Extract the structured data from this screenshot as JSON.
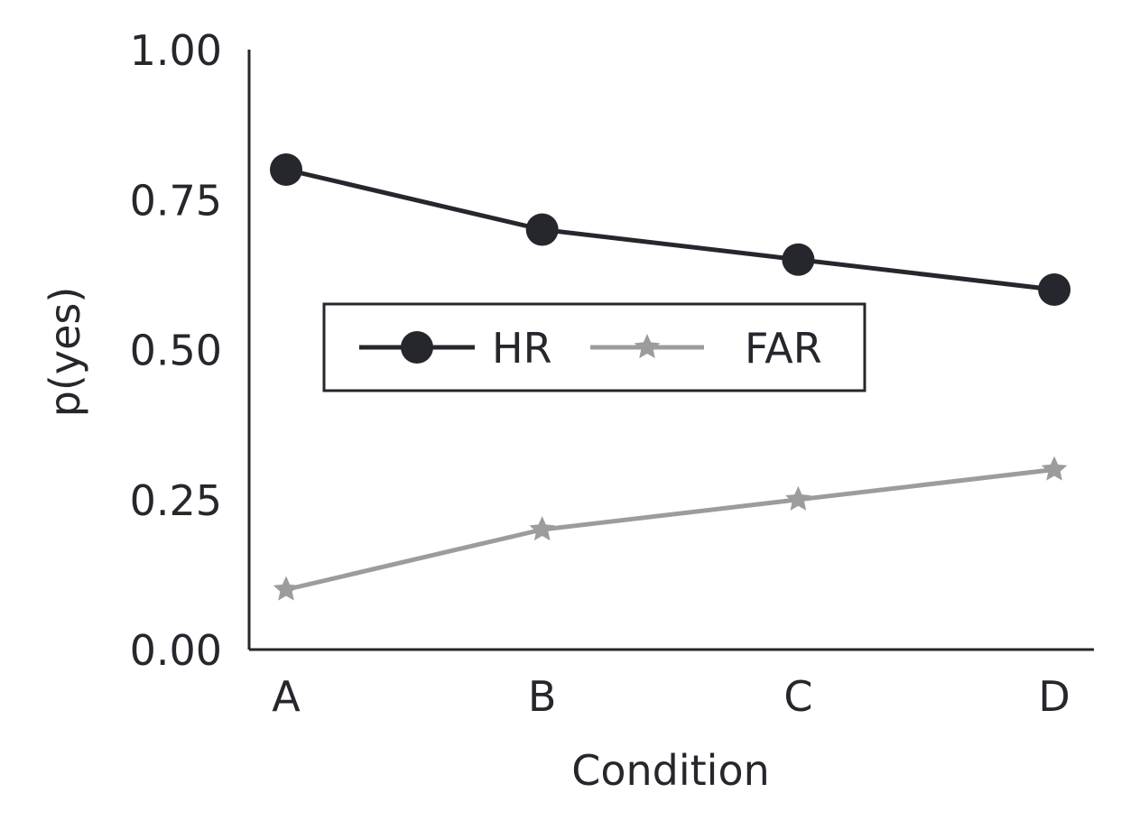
{
  "chart_data": {
    "type": "line",
    "categories": [
      "A",
      "B",
      "C",
      "D"
    ],
    "series": [
      {
        "name": "HR",
        "values": [
          0.8,
          0.7,
          0.65,
          0.6
        ],
        "color": "#25272d",
        "marker": "circle"
      },
      {
        "name": "FAR",
        "values": [
          0.1,
          0.2,
          0.25,
          0.3
        ],
        "color": "#9c9c9e",
        "marker": "star"
      }
    ],
    "xlabel": "Condition",
    "ylabel": "p(yes)",
    "ylim": [
      0,
      1
    ],
    "yticks": [
      "0.00",
      "0.25",
      "0.50",
      "0.75",
      "1.00"
    ],
    "grid": false,
    "legend_position": "center-left"
  }
}
